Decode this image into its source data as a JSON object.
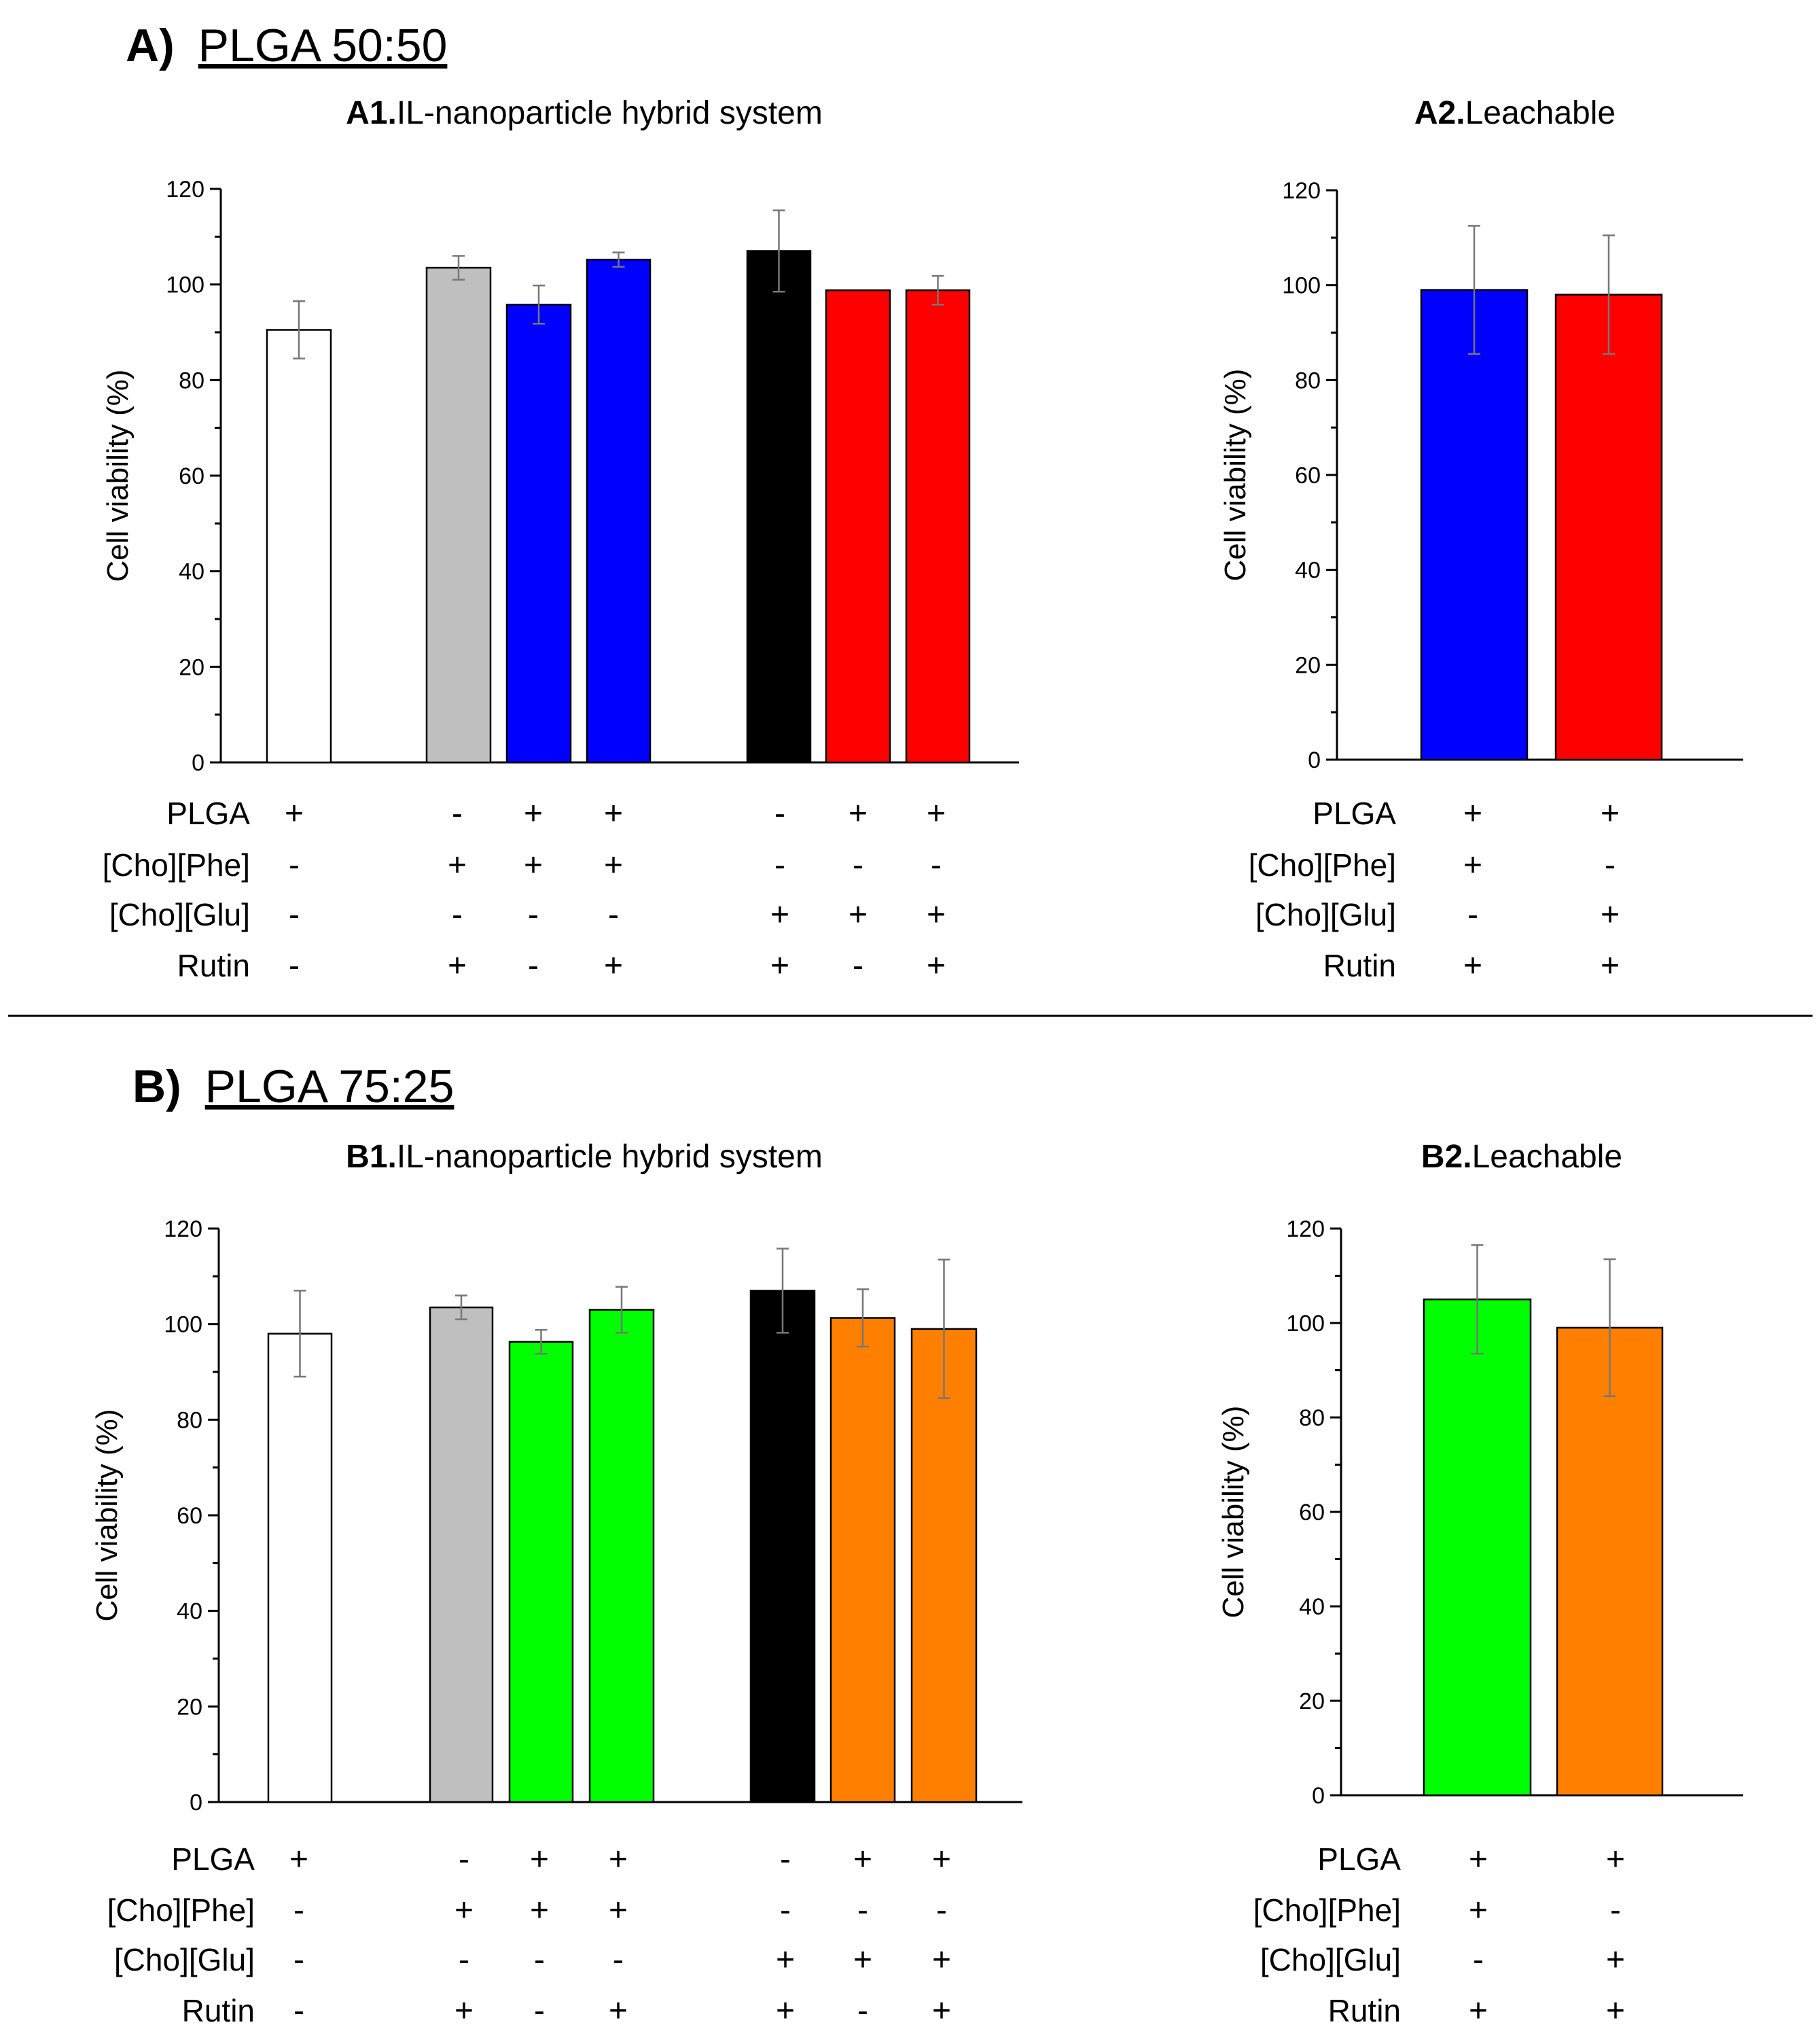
{
  "figure": {
    "sections": [
      {
        "label": "A)",
        "name": "PLGA 50:50"
      },
      {
        "label": "B)",
        "name": "PLGA 75:25"
      }
    ],
    "row_labels": [
      "PLGA",
      "[Cho][Phe]",
      "[Cho][Glu]",
      "Rutin"
    ]
  },
  "chart_data": [
    {
      "id": "A1",
      "type": "bar",
      "title_bold": "A1.",
      "title_rest": "IL-nanoparticle hybrid system",
      "ylabel": "Cell viability (%)",
      "ylim": [
        0,
        120
      ],
      "yticks": [
        0,
        20,
        40,
        60,
        80,
        100,
        120
      ],
      "values": [
        90.5,
        103.5,
        95.8,
        105.2,
        107,
        98.8,
        98.8
      ],
      "errors": [
        6,
        2.5,
        4,
        1.5,
        8.5,
        0,
        3
      ],
      "colors": [
        "#ffffff",
        "#bfbfbf",
        "#0000ff",
        "#0000ff",
        "#000000",
        "#ff0000",
        "#ff0000"
      ],
      "conditions": [
        [
          "+",
          "-",
          "+",
          "+",
          "-",
          "+",
          "+"
        ],
        [
          "-",
          "+",
          "+",
          "+",
          "-",
          "-",
          "-"
        ],
        [
          "-",
          "-",
          "-",
          "-",
          "+",
          "+",
          "+"
        ],
        [
          "-",
          "+",
          "-",
          "+",
          "+",
          "-",
          "+"
        ]
      ]
    },
    {
      "id": "A2",
      "type": "bar",
      "title_bold": "A2.",
      "title_rest": "Leachable",
      "ylabel": "Cell viability (%)",
      "ylim": [
        0,
        120
      ],
      "yticks": [
        0,
        20,
        40,
        60,
        80,
        100,
        120
      ],
      "values": [
        99,
        98
      ],
      "errors": [
        13.5,
        12.5
      ],
      "colors": [
        "#0000ff",
        "#ff0000"
      ],
      "conditions": [
        [
          "+",
          "+"
        ],
        [
          "+",
          "-"
        ],
        [
          "-",
          "+"
        ],
        [
          "+",
          "+"
        ]
      ]
    },
    {
      "id": "B1",
      "type": "bar",
      "title_bold": "B1.",
      "title_rest": "IL-nanoparticle hybrid system",
      "ylabel": "Cell viability (%)",
      "ylim": [
        0,
        120
      ],
      "yticks": [
        0,
        20,
        40,
        60,
        80,
        100,
        120
      ],
      "values": [
        98,
        103.5,
        96.3,
        103,
        107,
        101.3,
        99
      ],
      "errors": [
        9,
        2.5,
        2.5,
        4.8,
        8.8,
        6,
        14.5
      ],
      "colors": [
        "#ffffff",
        "#bfbfbf",
        "#00ff00",
        "#00ff00",
        "#000000",
        "#ff8000",
        "#ff8000"
      ],
      "conditions": [
        [
          "+",
          "-",
          "+",
          "+",
          "-",
          "+",
          "+"
        ],
        [
          "-",
          "+",
          "+",
          "+",
          "-",
          "-",
          "-"
        ],
        [
          "-",
          "-",
          "-",
          "-",
          "+",
          "+",
          "+"
        ],
        [
          "-",
          "+",
          "-",
          "+",
          "+",
          "-",
          "+"
        ]
      ]
    },
    {
      "id": "B2",
      "type": "bar",
      "title_bold": "B2.",
      "title_rest": "Leachable",
      "ylabel": "Cell viability (%)",
      "ylim": [
        0,
        120
      ],
      "yticks": [
        0,
        20,
        40,
        60,
        80,
        100,
        120
      ],
      "values": [
        105,
        99
      ],
      "errors": [
        11.5,
        14.5
      ],
      "colors": [
        "#00ff00",
        "#ff8000"
      ],
      "conditions": [
        [
          "+",
          "+"
        ],
        [
          "+",
          "-"
        ],
        [
          "-",
          "+"
        ],
        [
          "+",
          "+"
        ]
      ]
    }
  ]
}
